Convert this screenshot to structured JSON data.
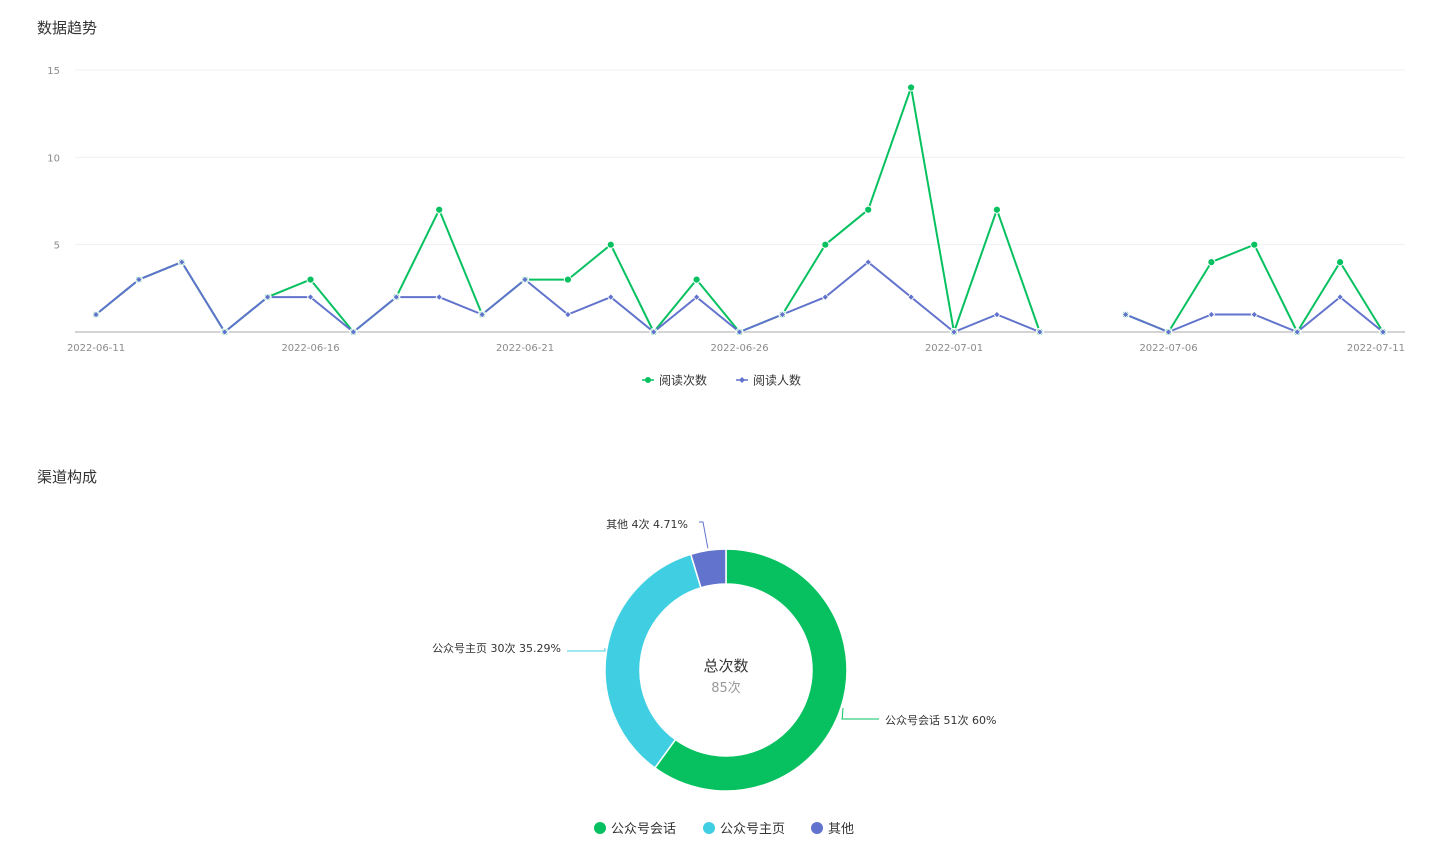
{
  "trend": {
    "title": "数据趋势",
    "chart_data": {
      "type": "line",
      "title": "",
      "xlabel": "",
      "ylabel": "",
      "ylim": [
        0,
        15
      ],
      "y_ticks": [
        "5",
        "10",
        "15"
      ],
      "x_tick_labels": [
        "2022-06-11",
        "2022-06-16",
        "2022-06-21",
        "2022-06-26",
        "2022-07-01",
        "2022-07-06",
        "2022-07-11"
      ],
      "x": [
        "2022-06-11",
        "2022-06-12",
        "2022-06-13",
        "2022-06-14",
        "2022-06-15",
        "2022-06-16",
        "2022-06-17",
        "2022-06-18",
        "2022-06-19",
        "2022-06-20",
        "2022-06-21",
        "2022-06-22",
        "2022-06-23",
        "2022-06-24",
        "2022-06-25",
        "2022-06-26",
        "2022-06-27",
        "2022-06-28",
        "2022-06-29",
        "2022-06-30",
        "2022-07-01",
        "2022-07-02",
        "2022-07-03",
        "2022-07-04",
        "2022-07-05",
        "2022-07-06",
        "2022-07-07",
        "2022-07-08",
        "2022-07-09",
        "2022-07-10",
        "2022-07-11"
      ],
      "grid": true,
      "legend_position": "bottom",
      "series": [
        {
          "name": "阅读次数",
          "color": "#07c160",
          "marker": "circle",
          "values": [
            1,
            3,
            4,
            0,
            2,
            3,
            0,
            2,
            7,
            1,
            3,
            3,
            5,
            0,
            3,
            0,
            1,
            5,
            7,
            14,
            0,
            7,
            0,
            null,
            1,
            0,
            4,
            5,
            0,
            4,
            0
          ]
        },
        {
          "name": "阅读人数",
          "color": "#6173cc",
          "marker": "diamond",
          "values": [
            1,
            3,
            4,
            0,
            2,
            2,
            0,
            2,
            2,
            1,
            3,
            1,
            2,
            0,
            2,
            0,
            1,
            2,
            4,
            2,
            0,
            1,
            0,
            null,
            1,
            0,
            1,
            1,
            0,
            2,
            0
          ]
        }
      ]
    }
  },
  "channel": {
    "title": "渠道构成",
    "center_title": "总次数",
    "center_value": "85次",
    "chart_data": {
      "type": "pie",
      "donut": true,
      "total": 85,
      "legend_position": "bottom",
      "slices": [
        {
          "name": "公众号会话",
          "value": 51,
          "percent": "60%",
          "label": "公众号会话 51次 60%",
          "color": "#07c160"
        },
        {
          "name": "公众号主页",
          "value": 30,
          "percent": "35.29%",
          "label": "公众号主页 30次 35.29%",
          "color": "#40cfe2"
        },
        {
          "name": "其他",
          "value": 4,
          "percent": "4.71%",
          "label": "其他 4次 4.71%",
          "color": "#6173cc"
        }
      ]
    }
  }
}
